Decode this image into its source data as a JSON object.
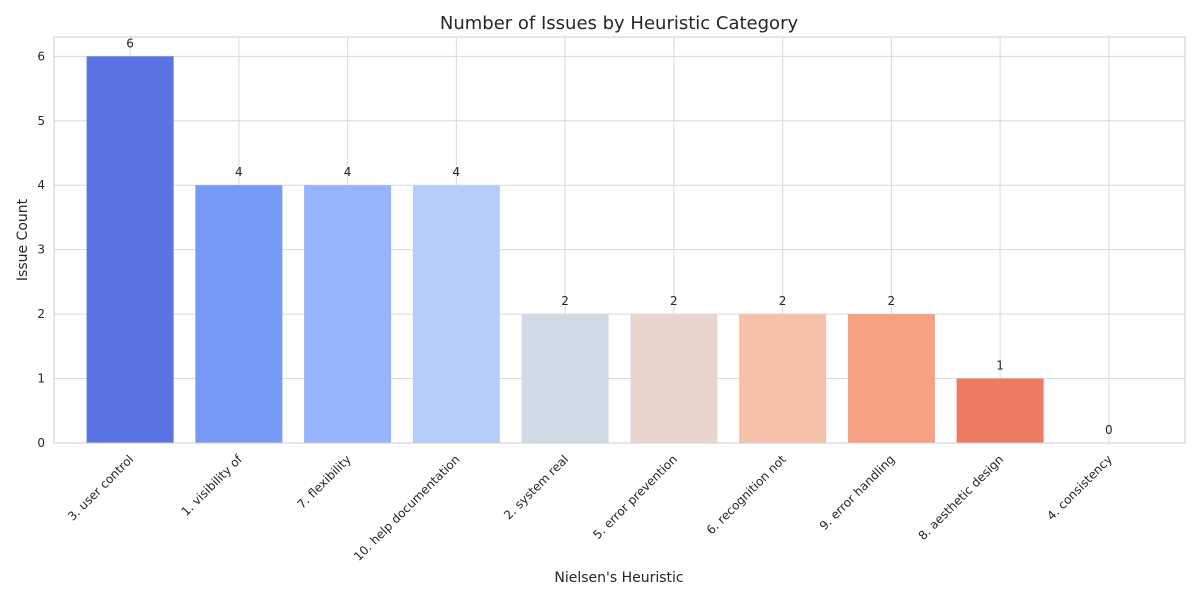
{
  "chart_data": {
    "type": "bar",
    "title": "Number of Issues by Heuristic Category",
    "xlabel": "Nielsen's Heuristic",
    "ylabel": "Issue Count",
    "categories": [
      "3. user control",
      "1. visibility of",
      "7. flexibility",
      "10. help documentation",
      "2. system real",
      "5. error prevention",
      "6. recognition not",
      "9. error handling",
      "8. aesthetic design",
      "4. consistency"
    ],
    "values": [
      6,
      4,
      4,
      4,
      2,
      2,
      2,
      2,
      1,
      0
    ],
    "colors": [
      "#5a74e4",
      "#7799f7",
      "#96b4fc",
      "#b6cdfa",
      "#d1dbe8",
      "#e8d6cc",
      "#f5c1a8",
      "#f6a282",
      "#ec7b62",
      "#c0282d"
    ],
    "yticks": [
      0,
      1,
      2,
      3,
      4,
      5,
      6
    ],
    "ylim": [
      0,
      6.3
    ],
    "grid": true,
    "data_labels": true
  }
}
